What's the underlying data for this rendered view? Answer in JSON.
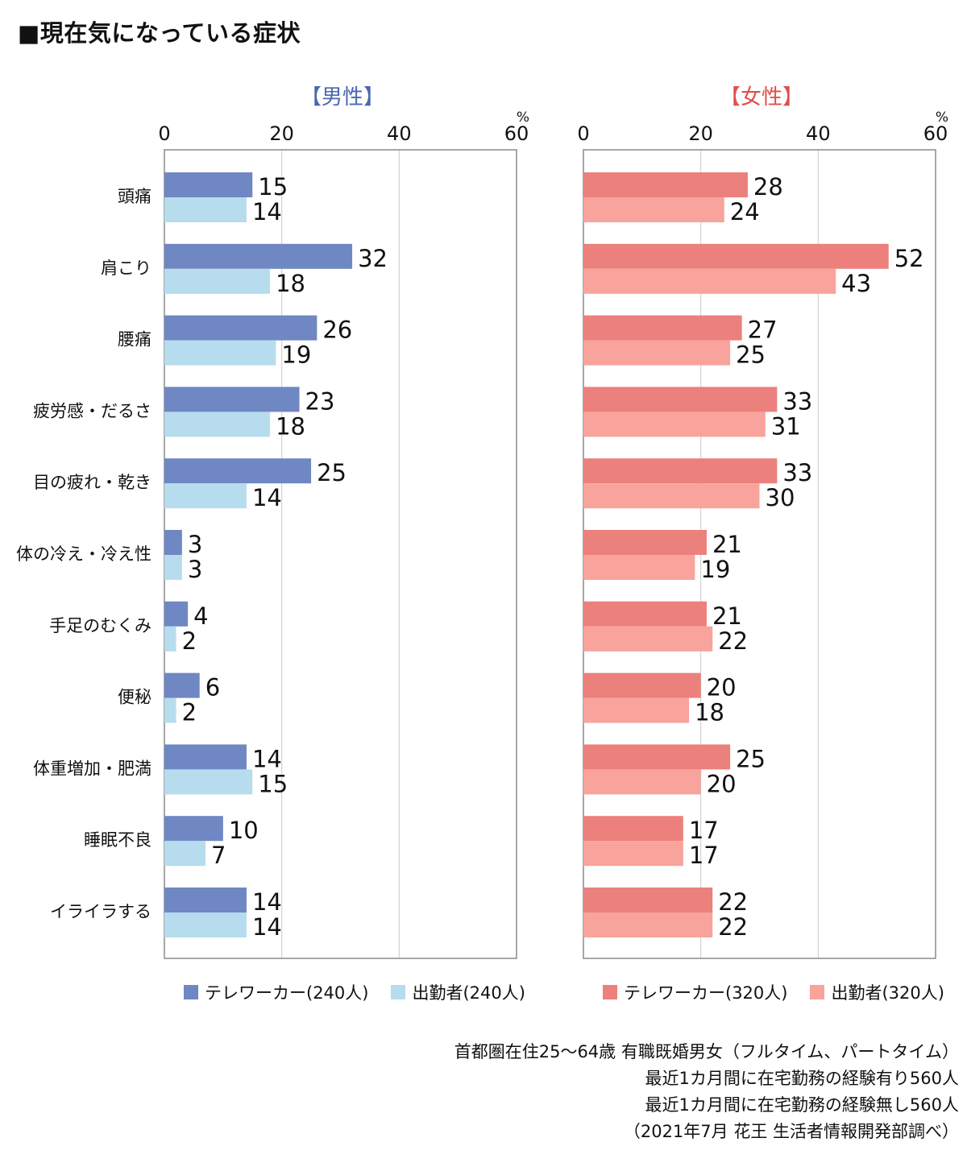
{
  "title": "■現在気になっている症状",
  "colors": {
    "male_tele": "#6f87c2",
    "male_office": "#b6dcee",
    "female_tele": "#ec807c",
    "female_office": "#f8a39c",
    "male_title": "#4a67b0",
    "female_title": "#e0504a",
    "axis": "#8a8a8a",
    "grid": "#cccccc"
  },
  "chart_data": [
    {
      "type": "bar",
      "orientation": "horizontal",
      "title": "【男性】",
      "unit": "%",
      "xlim": [
        0,
        60
      ],
      "ticks": [
        0,
        20,
        40,
        60
      ],
      "categories": [
        "頭痛",
        "肩こり",
        "腰痛",
        "疲労感・だるさ",
        "目の疲れ・乾き",
        "体の冷え・冷え性",
        "手足のむくみ",
        "便秘",
        "体重増加・肥満",
        "睡眠不良",
        "イライラする"
      ],
      "series": [
        {
          "name": "テレワーカー(240人)",
          "values": [
            15,
            32,
            26,
            23,
            25,
            3,
            4,
            6,
            14,
            10,
            14
          ]
        },
        {
          "name": "出勤者(240人)",
          "values": [
            14,
            18,
            19,
            18,
            14,
            3,
            2,
            2,
            15,
            7,
            14
          ]
        }
      ]
    },
    {
      "type": "bar",
      "orientation": "horizontal",
      "title": "【女性】",
      "unit": "%",
      "xlim": [
        0,
        60
      ],
      "ticks": [
        0,
        20,
        40,
        60
      ],
      "categories": [
        "頭痛",
        "肩こり",
        "腰痛",
        "疲労感・だるさ",
        "目の疲れ・乾き",
        "体の冷え・冷え性",
        "手足のむくみ",
        "便秘",
        "体重増加・肥満",
        "睡眠不良",
        "イライラする"
      ],
      "series": [
        {
          "name": "テレワーカー(320人)",
          "values": [
            28,
            52,
            27,
            33,
            33,
            21,
            21,
            20,
            25,
            17,
            22
          ]
        },
        {
          "name": "出勤者(320人)",
          "values": [
            24,
            43,
            25,
            31,
            30,
            19,
            22,
            18,
            20,
            17,
            22
          ]
        }
      ]
    }
  ],
  "footnote": [
    "首都圏在住25〜64歳 有職既婚男女（フルタイム、パートタイム）",
    "最近1カ月間に在宅勤務の経験有り560人",
    "最近1カ月間に在宅勤務の経験無し560人",
    "（2021年7月 花王 生活者情報開発部調べ）"
  ]
}
